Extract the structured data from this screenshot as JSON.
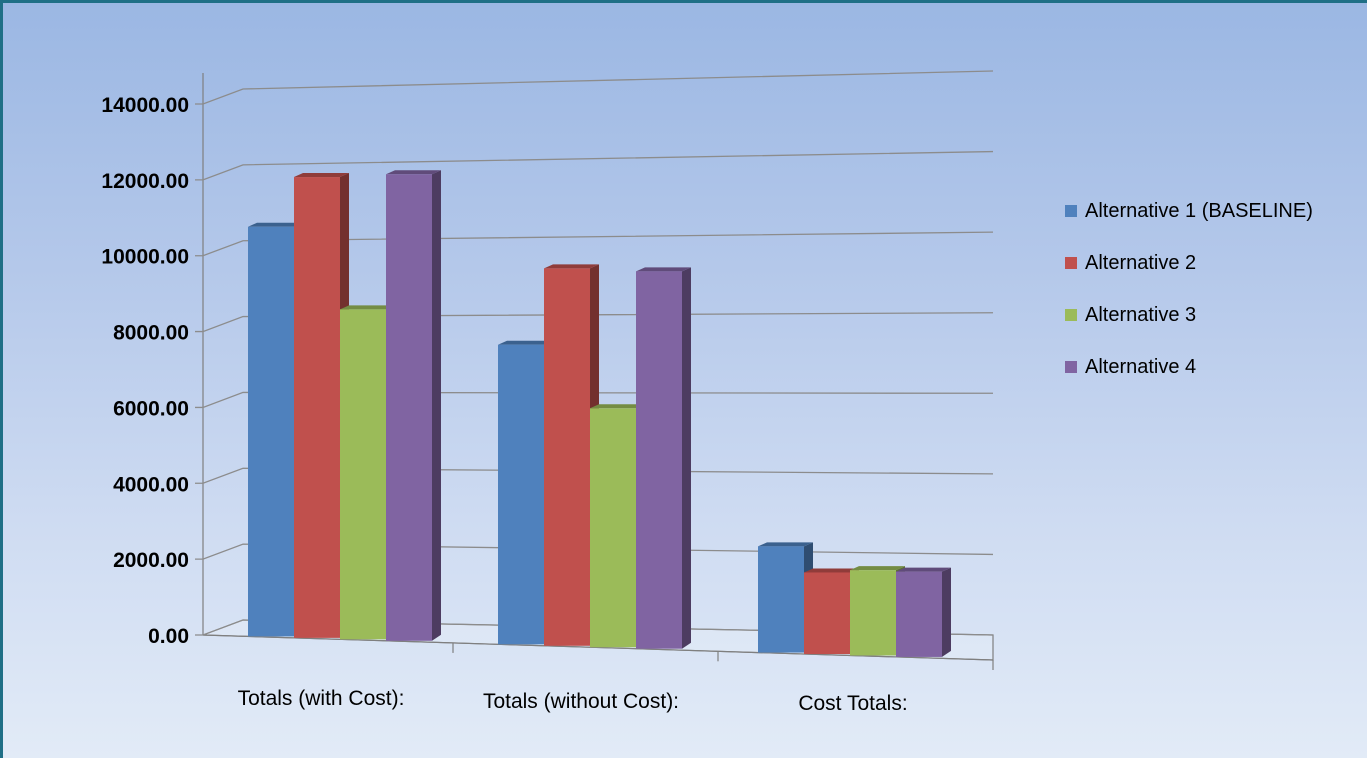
{
  "chart_data": {
    "type": "bar",
    "title": "",
    "xlabel": "",
    "ylabel": "",
    "ylim": [
      0,
      14000
    ],
    "yticks": [
      0,
      2000,
      4000,
      6000,
      8000,
      10000,
      12000,
      14000
    ],
    "ytick_labels": [
      "0.00",
      "2000.00",
      "4000.00",
      "6000.00",
      "8000.00",
      "10000.00",
      "12000.00",
      "14000.00"
    ],
    "categories": [
      "Totals (with Cost):",
      "Totals (without Cost):",
      "Cost Totals:"
    ],
    "series": [
      {
        "name": "Alternative 1  (BASELINE)",
        "color": "#4f81bd",
        "values": [
          10800,
          7900,
          2800
        ]
      },
      {
        "name": "Alternative 2",
        "color": "#c0504d",
        "values": [
          12150,
          9950,
          2150
        ]
      },
      {
        "name": "Alternative 3",
        "color": "#9bbb59",
        "values": [
          8700,
          6300,
          2250
        ]
      },
      {
        "name": "Alternative 4",
        "color": "#8064a2",
        "values": [
          12300,
          9950,
          2250
        ]
      }
    ],
    "grid": true,
    "legend_position": "right",
    "style": "3d-clustered-column"
  }
}
